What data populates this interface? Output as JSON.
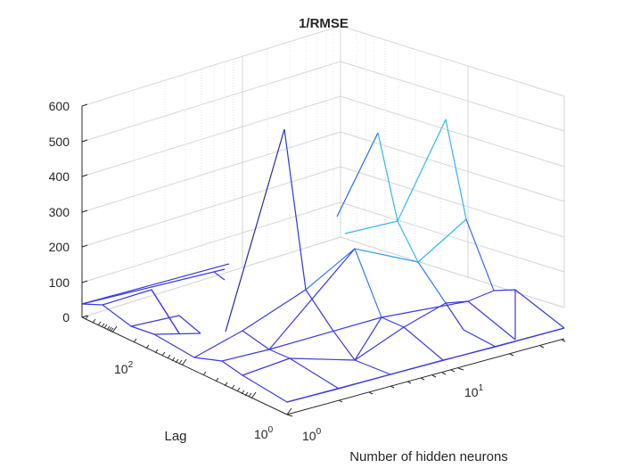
{
  "chart_data": {
    "type": "surface-mesh",
    "title": "1/RMSE",
    "xlabel": "Number of hidden neurons",
    "ylabel": "Lag",
    "zlabel": "",
    "xscale": "log",
    "yscale": "log",
    "x_ticks": [
      "10",
      "10"
    ],
    "x_tick_exponents": [
      "0",
      "1"
    ],
    "y_ticks": [
      "10",
      "10"
    ],
    "y_tick_exponents": [
      "0",
      "2"
    ],
    "z_ticks": [
      "0",
      "100",
      "200",
      "300",
      "400",
      "500",
      "600"
    ],
    "zlim": [
      0,
      600
    ],
    "grid": true,
    "colormap": "parula-blue",
    "edge_colors": [
      "#3a2ee0",
      "#30c0e8"
    ]
  }
}
